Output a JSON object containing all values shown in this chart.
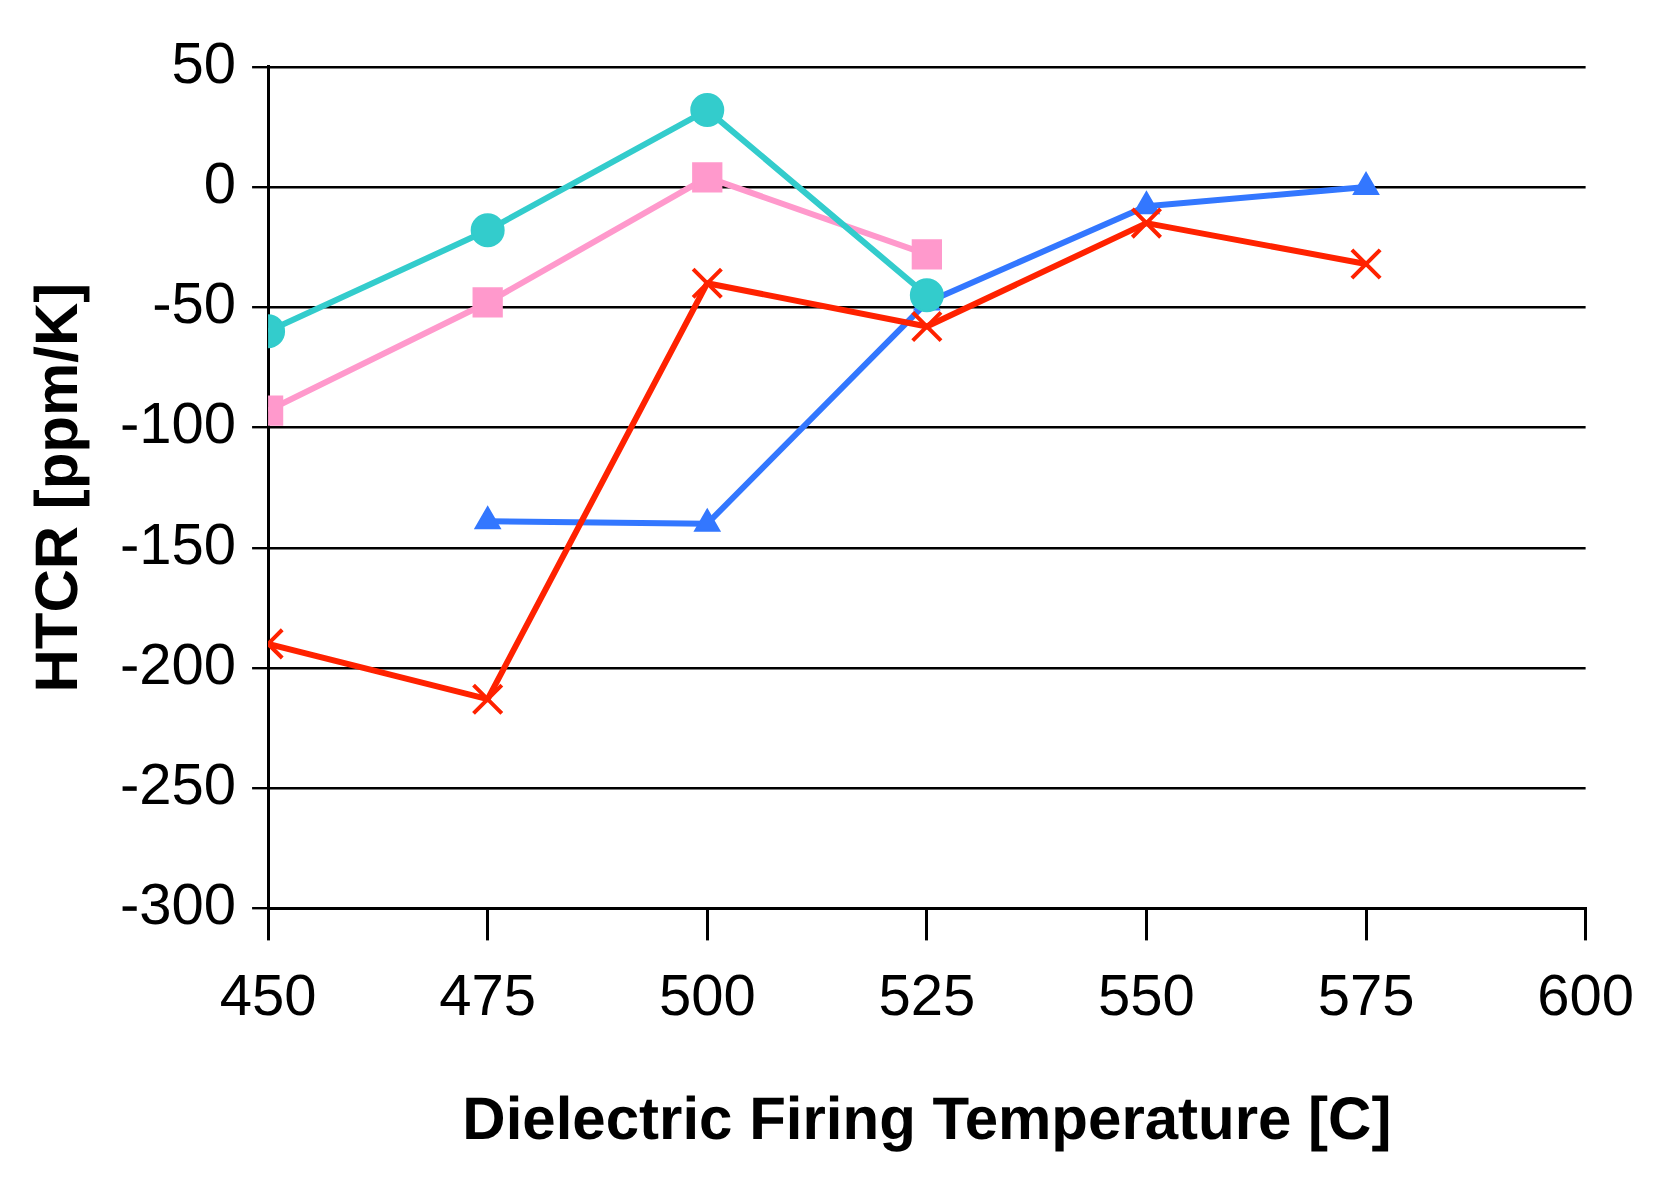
{
  "chart_data": {
    "type": "line",
    "xlabel": "Dielectric Firing Temperature [C]",
    "ylabel": "HTCR [ppm/K]",
    "x": [
      450,
      475,
      500,
      525,
      550,
      575
    ],
    "series": [
      {
        "color": "#33cccc",
        "marker": "circle",
        "values": [
          -60,
          -18,
          32,
          -45,
          null,
          null
        ]
      },
      {
        "color": "#ff99cc",
        "marker": "square",
        "values": [
          -93,
          -48,
          4,
          -28,
          null,
          null
        ]
      },
      {
        "color": "#ff2200",
        "marker": "cross",
        "values": [
          -190,
          -213,
          -40,
          -58,
          -15,
          -32
        ]
      },
      {
        "color": "#3377ff",
        "marker": "triangle",
        "values": [
          null,
          -139,
          -140,
          -48,
          -8,
          0
        ]
      }
    ],
    "xlim": [
      450,
      600
    ],
    "xticks": [
      450,
      475,
      500,
      525,
      550,
      575,
      600
    ],
    "ylim": [
      -300,
      50
    ],
    "yticks": [
      -300,
      -250,
      -200,
      -150,
      -100,
      -50,
      0,
      50
    ],
    "grid": "y",
    "legend": false
  }
}
